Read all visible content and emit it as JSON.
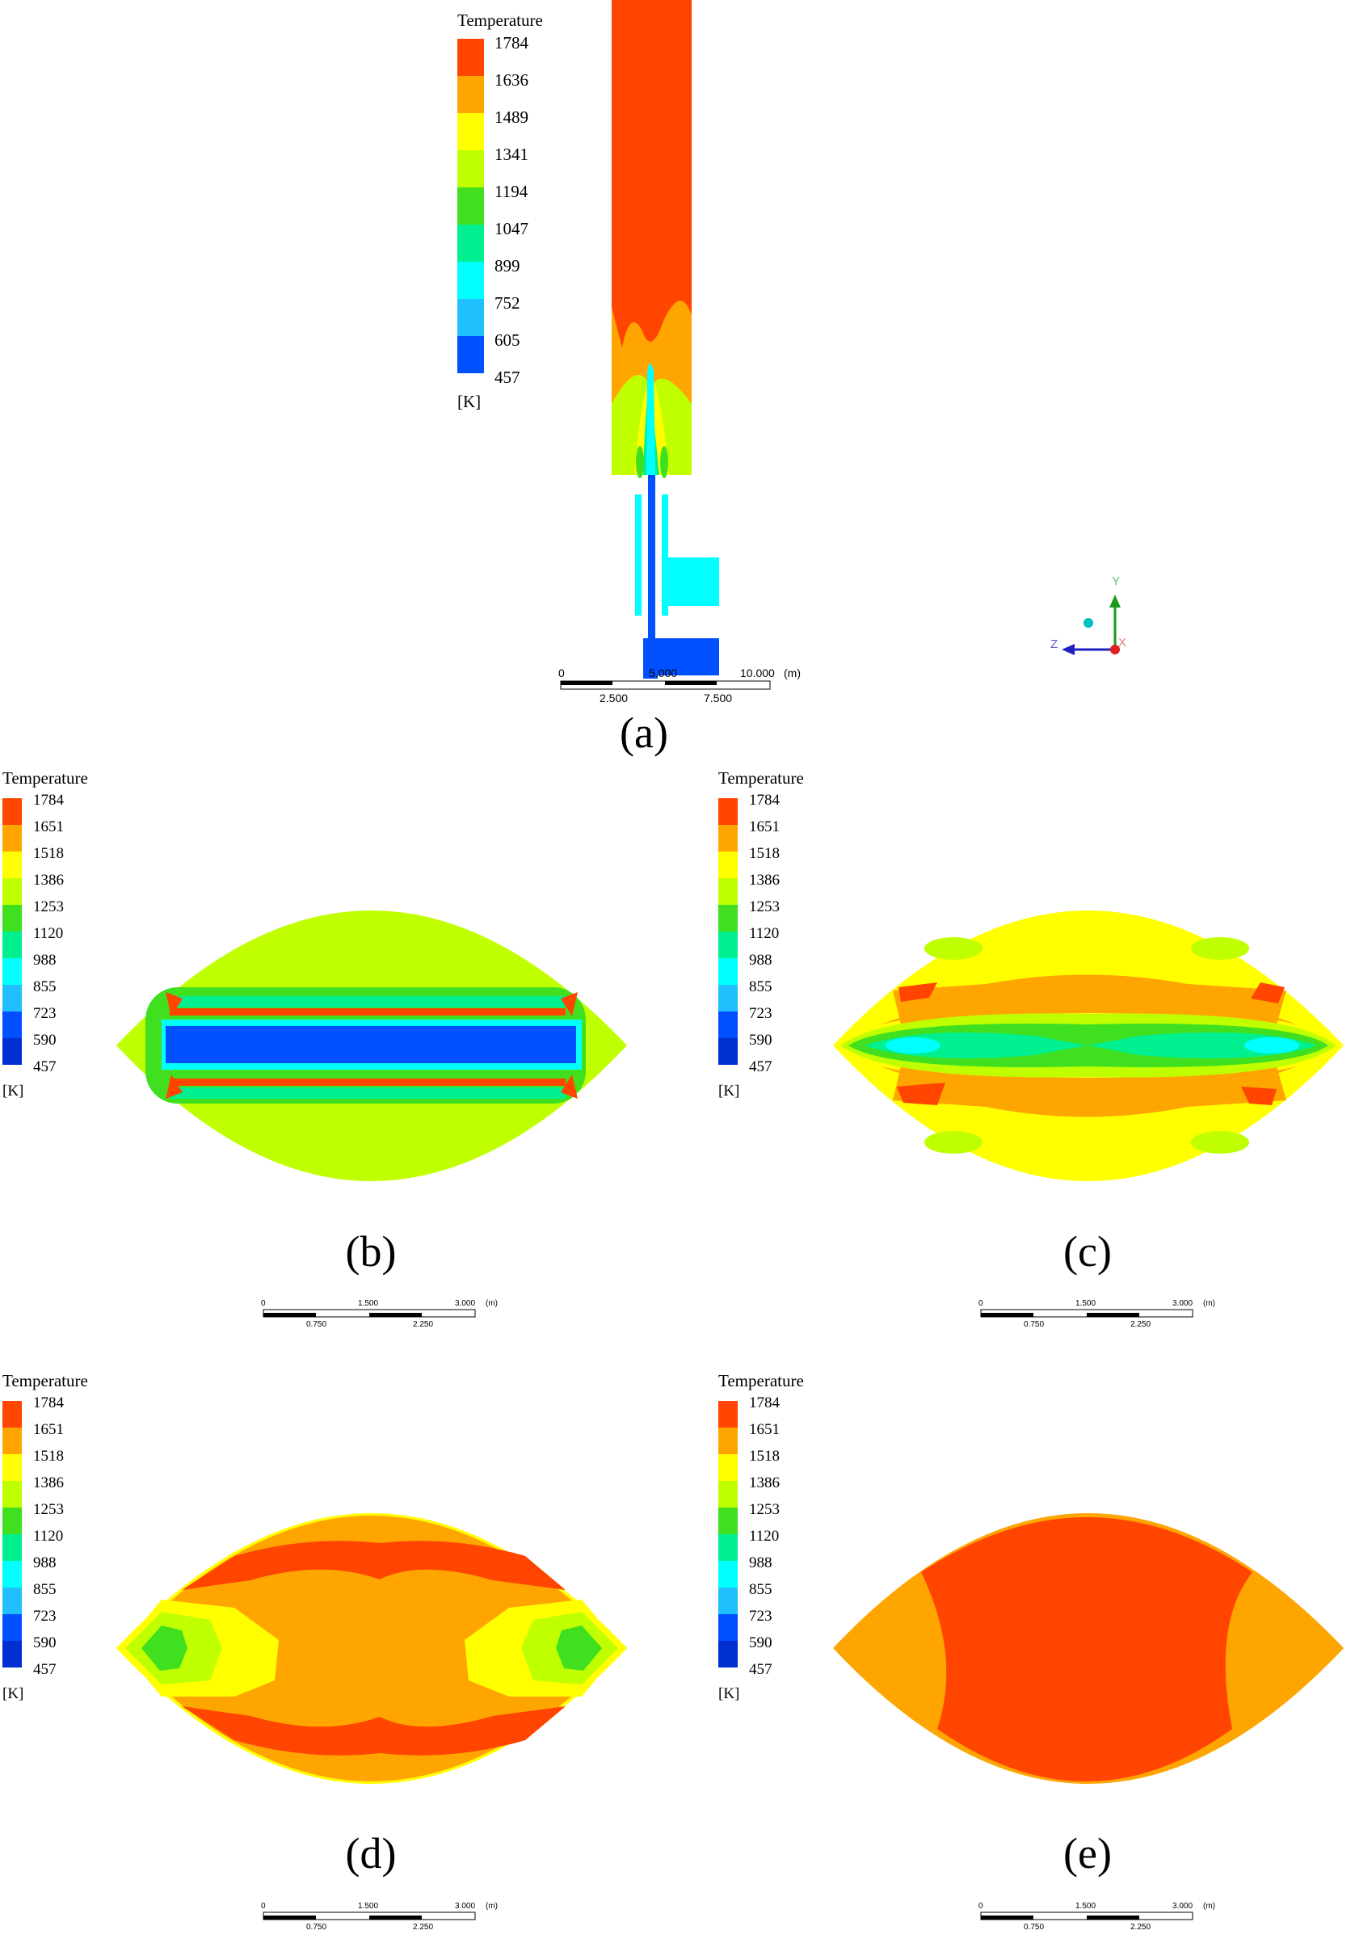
{
  "colors": {
    "red": "#ff4500",
    "orange": "#ffa500",
    "yellow": "#ffff00",
    "yellowgreen": "#c0ff00",
    "green": "#40e020",
    "greencyan": "#00f090",
    "cyan": "#00ffff",
    "lightblue": "#20c0ff",
    "blue": "#0050ff"
  },
  "legend_a": {
    "title": "Temperature",
    "ticks": [
      "1784",
      "1636",
      "1489",
      "1341",
      "1194",
      "1047",
      "899",
      "752",
      "605",
      "457"
    ],
    "unit": "[K]"
  },
  "legend_small": {
    "title": "Temperature",
    "ticks": [
      "1784",
      "1651",
      "1518",
      "1386",
      "1253",
      "1120",
      "988",
      "855",
      "723",
      "590",
      "457"
    ],
    "unit": "[K]"
  },
  "scalebar_a": {
    "top": [
      "0",
      "5.000",
      "10.000"
    ],
    "unit": "(m)",
    "bottom": [
      "2.500",
      "7.500"
    ]
  },
  "scalebar_small": {
    "top": [
      "0",
      "1.500",
      "3.000"
    ],
    "unit": "(m)",
    "bottom": [
      "0.750",
      "2.250"
    ]
  },
  "axes": {
    "y": "Y",
    "z": "Z",
    "x": "X"
  },
  "captions": {
    "a": "(a)",
    "b": "(b)",
    "c": "(c)",
    "d": "(d)",
    "e": "(e)"
  }
}
